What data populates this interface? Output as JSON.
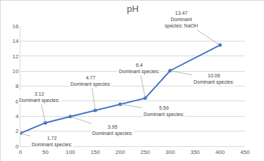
{
  "chart_data": {
    "type": "line",
    "title": "pH",
    "x": [
      0,
      50,
      100,
      150,
      200,
      250,
      300,
      400
    ],
    "values": [
      1.72,
      3.12,
      3.95,
      4.77,
      5.59,
      6.4,
      10.06,
      13.47
    ],
    "color": "#4472c4",
    "marker": "circle",
    "xlim": [
      0,
      450
    ],
    "xticks": [
      0,
      50,
      100,
      150,
      200,
      250,
      300,
      350,
      400,
      450
    ],
    "ylim": [
      0,
      16
    ],
    "yticks": [
      0,
      2,
      4,
      6,
      8,
      10,
      12,
      14,
      16
    ],
    "grid": true,
    "data_labels": true,
    "annotations": [
      "Dominant species:",
      "Dominant species:",
      "Dominant species:",
      "Dominant species:",
      "Dominant species:",
      "Dominant species:",
      "Dominant species:",
      "Dominant species: NaOH"
    ]
  }
}
